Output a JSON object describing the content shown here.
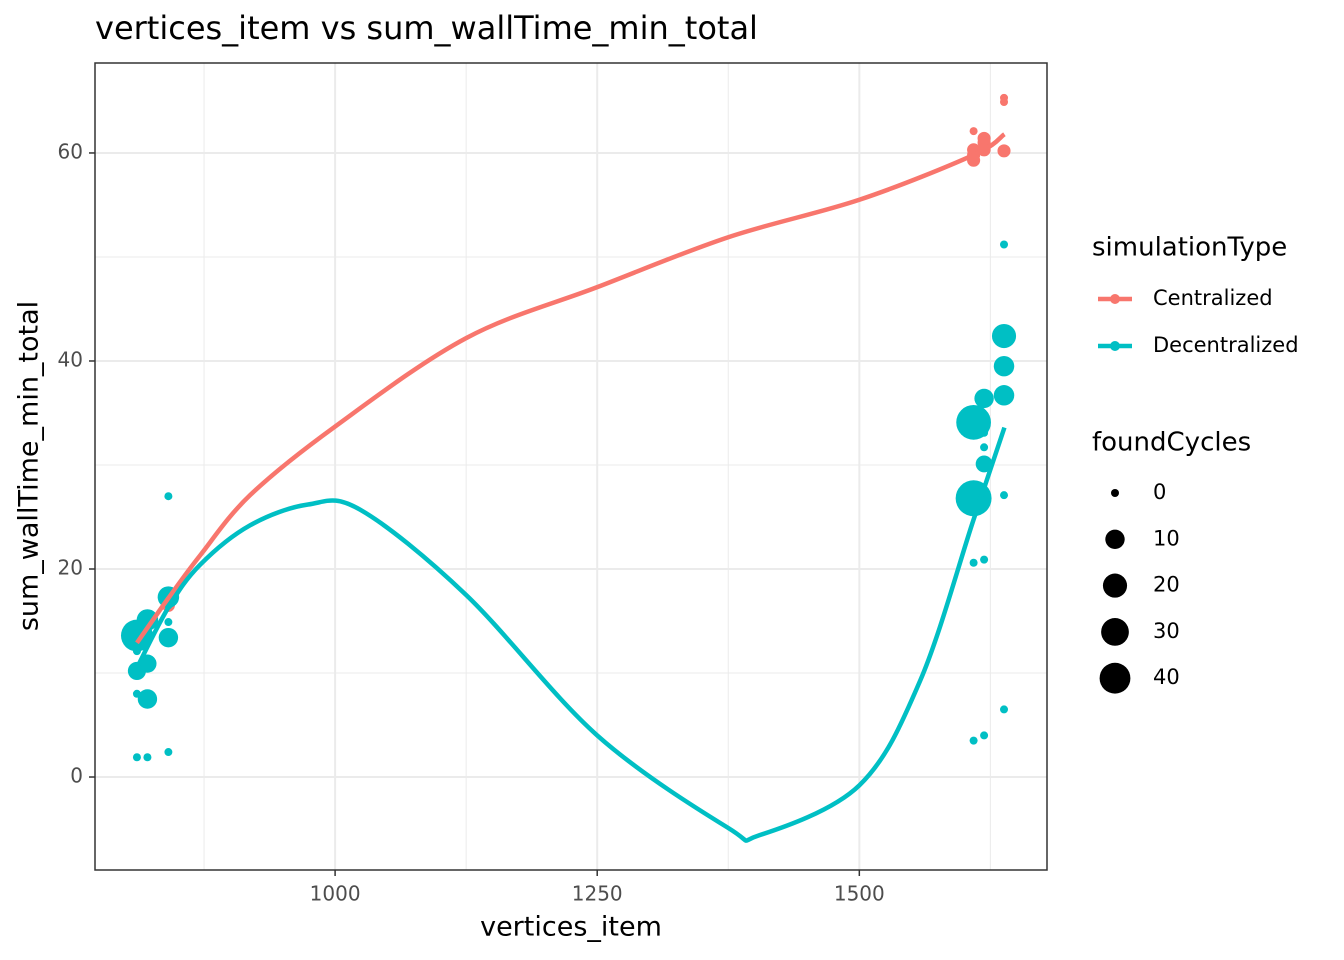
{
  "chart_data": {
    "type": "scatter",
    "title": "vertices_item  vs  sum_wallTime_min_total",
    "x_label": "vertices_item",
    "y_label": "sum_wallTime_min_total",
    "xlim": [
      771,
      1679
    ],
    "ylim": [
      -8.94,
      68.65
    ],
    "xticks": [
      1000,
      1250,
      1500
    ],
    "yticks": [
      0,
      20,
      40,
      60
    ],
    "minor_xticks": [
      875,
      1125,
      1375,
      1625
    ],
    "minor_yticks": [
      10,
      30,
      50
    ],
    "grid": true,
    "legend_title": "simulationType",
    "size_legend": {
      "title": "foundCycles",
      "values": [
        0,
        10,
        20,
        30,
        40
      ]
    },
    "series": [
      {
        "name": "Centralized",
        "color": "#F8766D",
        "x": [
          811,
          811,
          841,
          841,
          1609,
          1609,
          1609,
          1609,
          1619,
          1619,
          1619,
          1638,
          1638,
          1638
        ],
        "values": [
          13.1,
          13.6,
          17.0,
          16.5,
          62.1,
          59.8,
          59.3,
          60.3,
          61.4,
          61.0,
          60.3,
          65.3,
          64.9,
          60.2
        ],
        "sizes": [
          2,
          2,
          2,
          2,
          0,
          2,
          2,
          2,
          2,
          2,
          2,
          0,
          0,
          2
        ],
        "fit_x": [
          811,
          841,
          871.2,
          918.9,
          1000,
          1125,
          1250,
          1375,
          1500,
          1608.8,
          1638.4
        ],
        "fit_values": [
          12.9,
          17.2,
          21.3,
          27.1,
          33.7,
          42.2,
          47.1,
          51.9,
          55.5,
          59.8,
          61.8
        ]
      },
      {
        "name": "Decentralized",
        "color": "#00BFC4",
        "x": [
          811,
          811,
          811,
          811,
          811,
          821,
          821,
          821,
          821,
          821,
          841,
          841,
          841,
          841,
          841,
          841,
          1609,
          1609,
          1609,
          1609,
          1619,
          1619,
          1619,
          1619,
          1619,
          1619,
          1638,
          1638,
          1638,
          1638,
          1638,
          1638
        ],
        "values": [
          13.6,
          10.2,
          8.0,
          1.9,
          12.1,
          15.1,
          10.9,
          7.5,
          1.9,
          14.0,
          27.0,
          17.3,
          13.4,
          14.9,
          2.4,
          16.5,
          34.1,
          26.8,
          20.6,
          3.5,
          36.4,
          33.1,
          31.7,
          30.1,
          20.9,
          4.0,
          42.4,
          39.5,
          36.7,
          51.2,
          27.1,
          6.5
        ],
        "sizes": [
          44,
          8,
          0,
          0,
          0,
          14,
          8,
          10,
          0,
          0,
          0,
          14,
          10,
          0,
          0,
          0,
          55,
          60,
          0,
          0,
          10,
          0,
          0,
          6,
          0,
          0,
          20,
          12,
          12,
          0,
          0,
          0
        ],
        "fit_x": [
          811,
          841,
          871.2,
          918.9,
          974.2,
          1023.9,
          1125,
          1250,
          1375,
          1404.6,
          1500,
          1558.2,
          1608.8,
          1638.4
        ],
        "fit_values": [
          10.5,
          16.3,
          20.4,
          24.2,
          26.2,
          25.7,
          17.5,
          4.0,
          -4.9,
          -5.6,
          -0.8,
          9.3,
          24.7,
          33.6
        ]
      }
    ]
  }
}
